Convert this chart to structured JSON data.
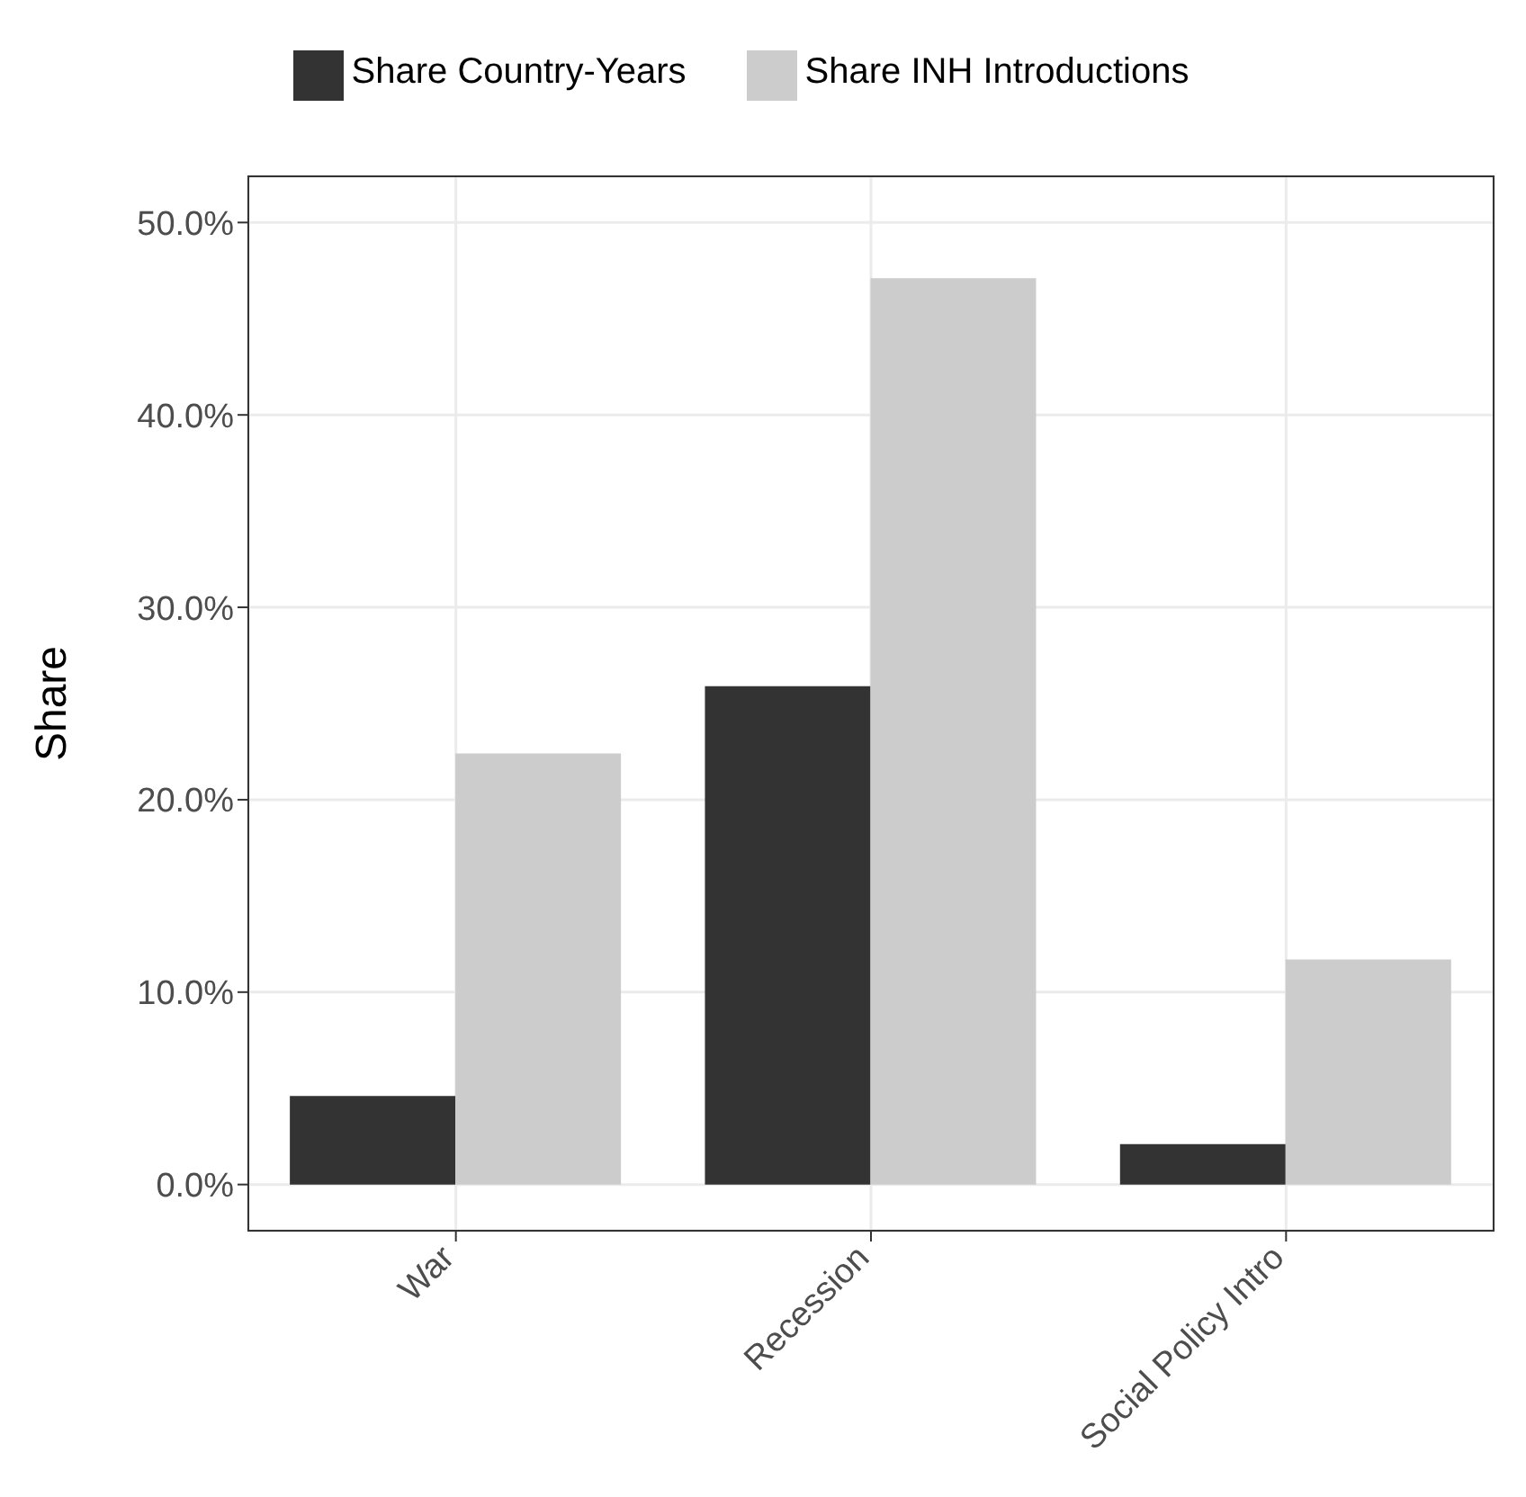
{
  "chart_data": {
    "type": "bar",
    "ylabel": "Share",
    "categories": [
      "War",
      "Recession",
      "Social Policy Intro"
    ],
    "series": [
      {
        "name": "Share Country-Years",
        "color": "#333333",
        "values": [
          4.6,
          25.9,
          2.1
        ]
      },
      {
        "name": "Share INH Introductions",
        "color": "#cccccc",
        "values": [
          22.4,
          47.1,
          11.7
        ]
      }
    ],
    "ylim": [
      -2.4,
      52.4
    ],
    "yticks": [
      {
        "value": 0,
        "label": "0.0%"
      },
      {
        "value": 10,
        "label": "10.0%"
      },
      {
        "value": 20,
        "label": "20.0%"
      },
      {
        "value": 30,
        "label": "30.0%"
      },
      {
        "value": 40,
        "label": "40.0%"
      },
      {
        "value": 50,
        "label": "50.0%"
      }
    ],
    "grid": true,
    "legend": "top"
  }
}
